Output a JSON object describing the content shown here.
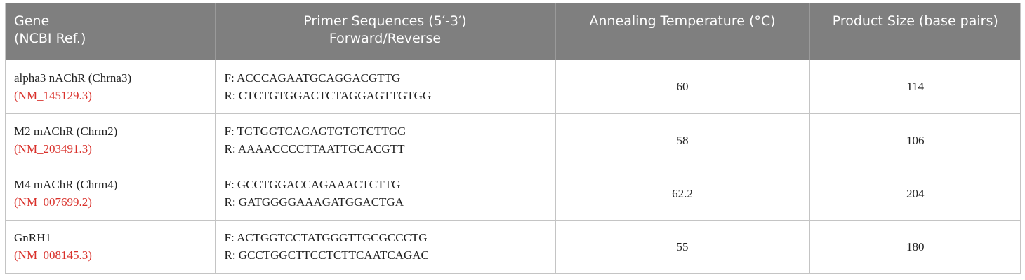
{
  "table": {
    "headers": {
      "gene": [
        "Gene",
        "(NCBI Ref.)"
      ],
      "primer": [
        "Primer Sequences (5′-3′)",
        "Forward/Reverse"
      ],
      "temp": "Annealing Temperature (°C)",
      "size": "Product Size (base pairs)"
    },
    "rows": [
      {
        "gene": "alpha3 nAChR (Chrna3)",
        "ref": "(NM_145129.3)",
        "forward": "F: ACCCAGAATGCAGGACGTTG",
        "reverse": "R: CTCTGTGGACTCTAGGAGTTGTGG",
        "temp": "60",
        "size": "114"
      },
      {
        "gene": "M2 mAChR (Chrm2)",
        "ref": "(NM_203491.3)",
        "forward": "F: TGTGGTCAGAGTGTGTCTTGG",
        "reverse": "R: AAAACCCCTTAATTGCACGTT",
        "temp": "58",
        "size": "106"
      },
      {
        "gene": "M4 mAChR (Chrm4)",
        "ref": "(NM_007699.2)",
        "forward": "F: GCCTGGACCAGAAACTCTTG",
        "reverse": "R: GATGGGGAAAGATGGACTGA",
        "temp": "62.2",
        "size": "204"
      },
      {
        "gene": "GnRH1",
        "ref": "(NM_008145.3)",
        "forward": "F: ACTGGTCCTATGGGTTGCGCCCTG",
        "reverse": "R: GCCTGGCTTCCTCTTCAATCAGAC",
        "temp": "55",
        "size": "180"
      }
    ]
  },
  "colors": {
    "header_bg": "#7f7f7f",
    "header_text": "#ffffff",
    "ref_link": "#d9302a",
    "body_text": "#222222",
    "grid": "#c4c4c4"
  }
}
